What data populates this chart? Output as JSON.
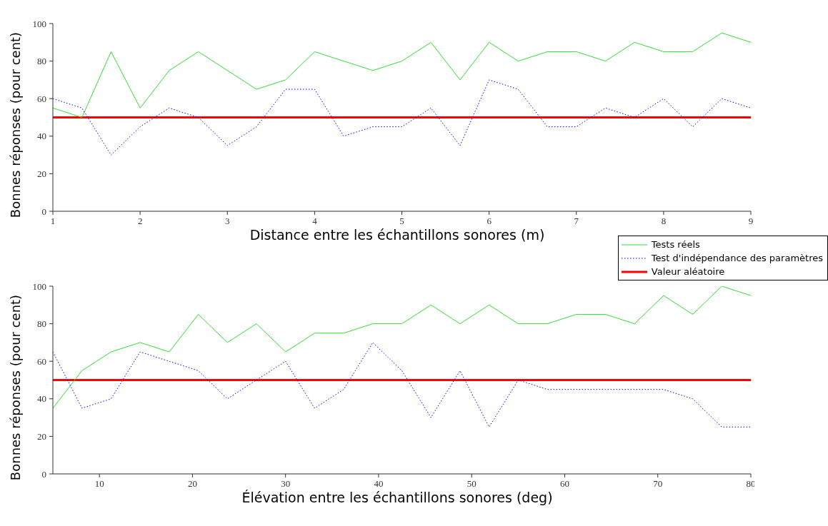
{
  "chart_data": [
    {
      "type": "line",
      "xlabel": "Distance entre les échantillons sonores (m)",
      "ylabel": "Bonnes réponses (pour cent)",
      "x": [
        1,
        1.333,
        1.667,
        2,
        2.333,
        2.667,
        3,
        3.333,
        3.667,
        4,
        4.333,
        4.667,
        5,
        5.333,
        5.667,
        6,
        6.333,
        6.667,
        7,
        7.333,
        7.667,
        8,
        8.333,
        8.667,
        9
      ],
      "series": [
        {
          "name": "Tests réels",
          "color": "#33dd33",
          "line_style": "solid",
          "values": [
            55,
            50,
            85,
            55,
            75,
            85,
            75,
            65,
            70,
            85,
            80,
            75,
            80,
            90,
            70,
            90,
            80,
            85,
            85,
            80,
            90,
            85,
            85,
            95,
            90
          ]
        },
        {
          "name": "Test d'indépendance des paramètres",
          "color": "#0000ff",
          "line_style": "dotted",
          "values": [
            60,
            55,
            30,
            45,
            55,
            50,
            35,
            45,
            65,
            65,
            40,
            45,
            45,
            55,
            35,
            70,
            65,
            45,
            45,
            55,
            50,
            60,
            45,
            60,
            55
          ]
        }
      ],
      "ref_lines": [
        {
          "axis": "y",
          "value": 50,
          "label": "Valeur aléatoire",
          "color": "#ff0000"
        }
      ],
      "xlim": [
        1,
        9
      ],
      "xticks": [
        1,
        2,
        3,
        4,
        5,
        6,
        7,
        8,
        9
      ],
      "ylim": [
        0,
        100
      ],
      "yticks": [
        0,
        20,
        40,
        60,
        80,
        100
      ],
      "grid": false,
      "legend": "bottom right",
      "marker": "none"
    },
    {
      "type": "line",
      "xlabel": "Élévation entre les échantillons sonores (deg)",
      "ylabel": "Bonnes réponses (pour cent)",
      "x": [
        5,
        8.125,
        11.25,
        14.375,
        17.5,
        20.625,
        23.75,
        26.875,
        30,
        33.125,
        36.25,
        39.375,
        42.5,
        45.625,
        48.75,
        51.875,
        55,
        58.125,
        61.25,
        64.375,
        67.5,
        70.625,
        73.75,
        76.875,
        80
      ],
      "series": [
        {
          "color": "#33dd33",
          "line_style": "solid",
          "values": [
            35,
            55,
            65,
            70,
            65,
            85,
            70,
            80,
            65,
            75,
            75,
            80,
            80,
            90,
            80,
            90,
            80,
            80,
            85,
            85,
            80,
            95,
            85,
            100,
            95
          ]
        },
        {
          "color": "#0000ff",
          "line_style": "dotted",
          "values": [
            65,
            35,
            40,
            65,
            60,
            55,
            40,
            50,
            60,
            35,
            45,
            70,
            55,
            30,
            55,
            25,
            50,
            45,
            45,
            45,
            45,
            45,
            40,
            25,
            25
          ]
        }
      ],
      "ref_lines": [
        {
          "axis": "y",
          "value": 50,
          "color": "#ff0000"
        }
      ],
      "xlim": [
        5,
        80
      ],
      "xticks": [
        10,
        20,
        30,
        40,
        50,
        60,
        70,
        80
      ],
      "ylim": [
        0,
        100
      ],
      "yticks": [
        0,
        20,
        40,
        60,
        80,
        100
      ],
      "grid": false,
      "legend": false,
      "marker": "none"
    }
  ]
}
